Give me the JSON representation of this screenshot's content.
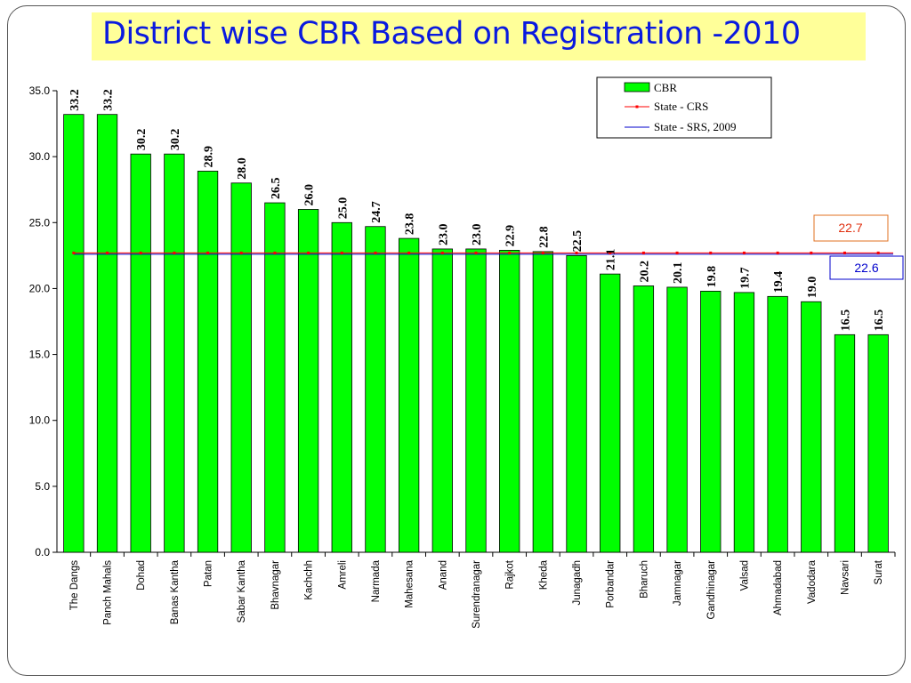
{
  "slide": {
    "title": "District wise CBR Based on Registration -2010"
  },
  "chart_data": {
    "type": "bar",
    "title": "District wise CBR Based on Registration -2010",
    "categories": [
      "The Dangs",
      "Panch Mahals",
      "Dohad",
      "Banas Kantha",
      "Patan",
      "Sabar Kantha",
      "Bhavnagar",
      "Kachchh",
      "Amreli",
      "Narmada",
      "Mahesana",
      "Anand",
      "Surendranagar",
      "Rajkot",
      "Kheda",
      "Junagadh",
      "Porbandar",
      "Bharuch",
      "Jamnagar",
      "Gandhinagar",
      "Valsad",
      "Ahmadabad",
      "Vadodara",
      "Navsari",
      "Surat"
    ],
    "series": [
      {
        "name": "CBR",
        "color": "#00ff00",
        "values": [
          33.2,
          33.2,
          30.2,
          30.2,
          28.9,
          28.0,
          26.5,
          26.0,
          25.0,
          24.7,
          23.8,
          23.0,
          23.0,
          22.9,
          22.8,
          22.5,
          21.1,
          20.2,
          20.1,
          19.8,
          19.7,
          19.4,
          19.0,
          16.5,
          16.5
        ]
      }
    ],
    "value_labels": [
      "33.2",
      "33.2",
      "30.2",
      "30.2",
      "28.9",
      "28.0",
      "26.5",
      "26.0",
      "25.0",
      "24.7",
      "23.8",
      "23.0",
      "23.0",
      "22.9",
      "22.8",
      "22.5",
      "21.1",
      "20.2",
      "20.1",
      "19.8",
      "19.7",
      "19.4",
      "19.0",
      "16.5",
      "16.5"
    ],
    "reference_lines": [
      {
        "name": "State - CRS",
        "value": 22.7,
        "label": "22.7",
        "color": "#ff0000"
      },
      {
        "name": "State - SRS, 2009",
        "value": 22.6,
        "label": "22.6",
        "color": "#0000cc"
      }
    ],
    "ylim": [
      0,
      35
    ],
    "yticks": [
      "0.0",
      "5.0",
      "10.0",
      "15.0",
      "20.0",
      "25.0",
      "30.0",
      "35.0"
    ],
    "legend": {
      "position": "top-right",
      "entries": [
        "CBR",
        "State - CRS",
        "State - SRS, 2009"
      ]
    },
    "grid": false
  }
}
